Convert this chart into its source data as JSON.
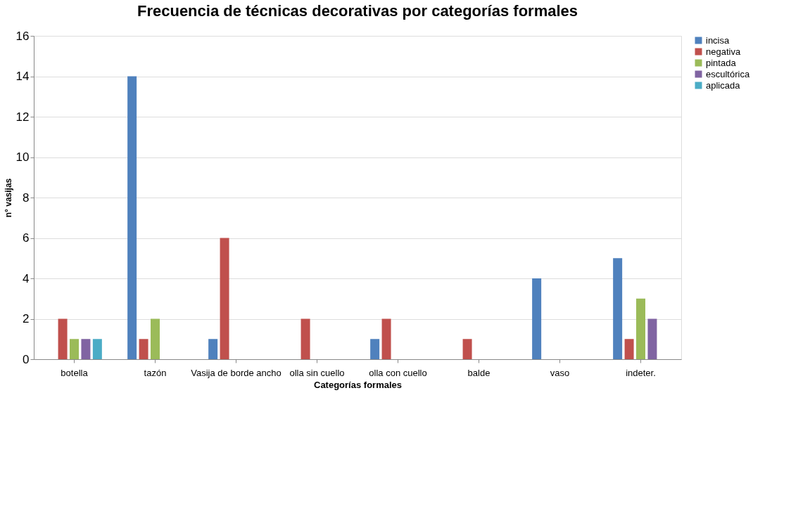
{
  "chart_data": {
    "type": "bar",
    "title": "Frecuencia de técnicas decorativas por categorías formales",
    "xlabel": "Categorías formales",
    "ylabel": "n° vasijas",
    "categories": [
      "botella",
      "tazón",
      "Vasija de borde ancho",
      "olla sin cuello",
      "olla con cuello",
      "balde",
      "vaso",
      "indeter."
    ],
    "series": [
      {
        "name": "incisa",
        "color": "#4f81bd",
        "values": [
          0,
          14,
          1,
          0,
          1,
          0,
          4,
          5
        ]
      },
      {
        "name": "negativa",
        "color": "#c0504d",
        "values": [
          2,
          1,
          6,
          2,
          2,
          1,
          0,
          1
        ]
      },
      {
        "name": "pintada",
        "color": "#9bbb59",
        "values": [
          1,
          2,
          0,
          0,
          0,
          0,
          0,
          3
        ]
      },
      {
        "name": "escultórica",
        "color": "#8064a2",
        "values": [
          1,
          0,
          0,
          0,
          0,
          0,
          0,
          2
        ]
      },
      {
        "name": "aplicada",
        "color": "#4bacc6",
        "values": [
          1,
          0,
          0,
          0,
          0,
          0,
          0,
          0
        ]
      }
    ],
    "ylim": [
      0,
      16
    ],
    "yticks": [
      0,
      2,
      4,
      6,
      8,
      10,
      12,
      14,
      16
    ],
    "grid": "y",
    "legend": "right"
  }
}
